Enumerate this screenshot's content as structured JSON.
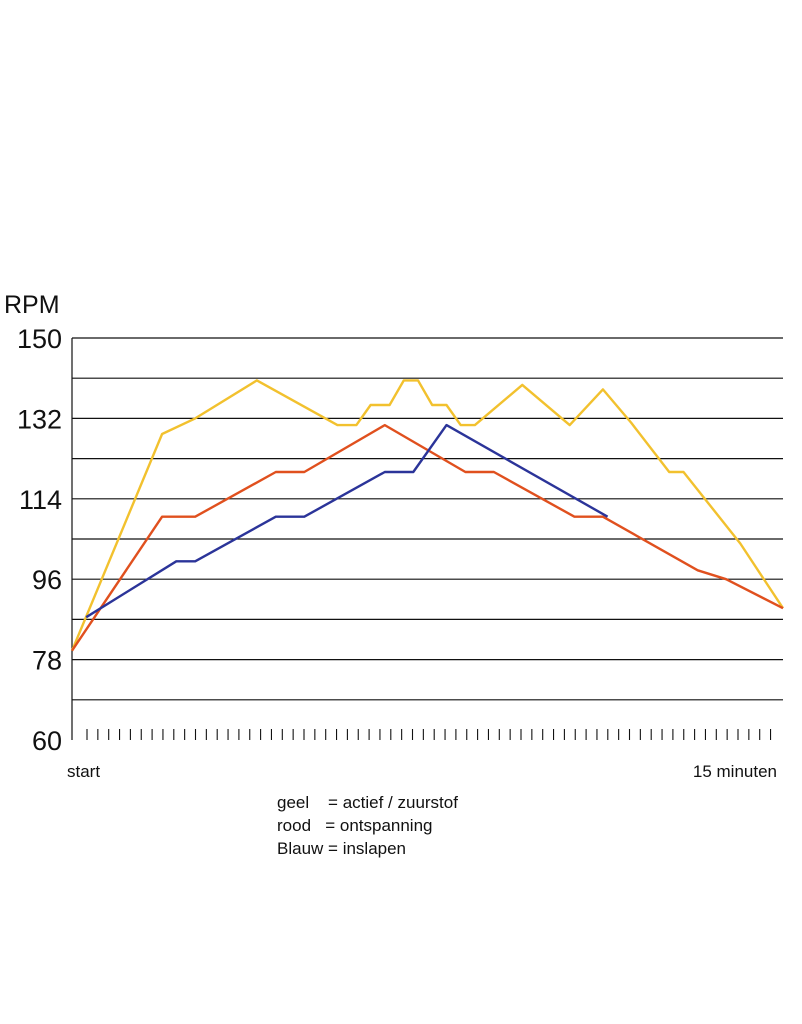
{
  "chart_data": {
    "type": "line",
    "ylabel": "RPM",
    "ylim": [
      60,
      150
    ],
    "yticks": [
      60,
      78,
      96,
      114,
      132,
      150
    ],
    "xlim": [
      0,
      15
    ],
    "x_start_label": "start",
    "x_end_label": "15 minuten",
    "grid": "horizontal",
    "series": [
      {
        "name": "geel",
        "color": "#F2C12E",
        "points": [
          [
            0,
            80
          ],
          [
            1.9,
            128.5
          ],
          [
            2.6,
            132
          ],
          [
            3.9,
            140.5
          ],
          [
            5.6,
            130.5
          ],
          [
            6.0,
            130.5
          ],
          [
            6.3,
            135
          ],
          [
            6.7,
            135
          ],
          [
            7.0,
            140.5
          ],
          [
            7.3,
            140.5
          ],
          [
            7.6,
            135
          ],
          [
            7.9,
            135
          ],
          [
            8.2,
            130.5
          ],
          [
            8.5,
            130.5
          ],
          [
            9.5,
            139.5
          ],
          [
            10.5,
            130.5
          ],
          [
            11.2,
            138.5
          ],
          [
            11.8,
            131
          ],
          [
            12.6,
            120
          ],
          [
            12.9,
            120
          ],
          [
            14.1,
            104
          ],
          [
            15,
            89.5
          ]
        ]
      },
      {
        "name": "rood",
        "color": "#E0501E",
        "points": [
          [
            0,
            80
          ],
          [
            1.9,
            110
          ],
          [
            2.6,
            110
          ],
          [
            4.3,
            120
          ],
          [
            4.9,
            120
          ],
          [
            6.6,
            130.5
          ],
          [
            8.3,
            120
          ],
          [
            8.9,
            120
          ],
          [
            10.6,
            110
          ],
          [
            11.2,
            110
          ],
          [
            13.2,
            98
          ],
          [
            13.8,
            96
          ],
          [
            15,
            89.5
          ]
        ]
      },
      {
        "name": "Blauw",
        "color": "#2B3499",
        "points": [
          [
            0.3,
            87.5
          ],
          [
            2.2,
            100
          ],
          [
            2.6,
            100
          ],
          [
            4.3,
            110
          ],
          [
            4.9,
            110
          ],
          [
            6.6,
            120
          ],
          [
            7.2,
            120
          ],
          [
            7.9,
            130.5
          ],
          [
            11.3,
            110
          ]
        ]
      }
    ],
    "legend": [
      {
        "key": "geel",
        "sep": "    = ",
        "value": "actief / zuurstof"
      },
      {
        "key": "rood",
        "sep": "   = ",
        "value": "ontspanning"
      },
      {
        "key": "Blauw",
        "sep": " = ",
        "value": "inslapen"
      }
    ]
  }
}
